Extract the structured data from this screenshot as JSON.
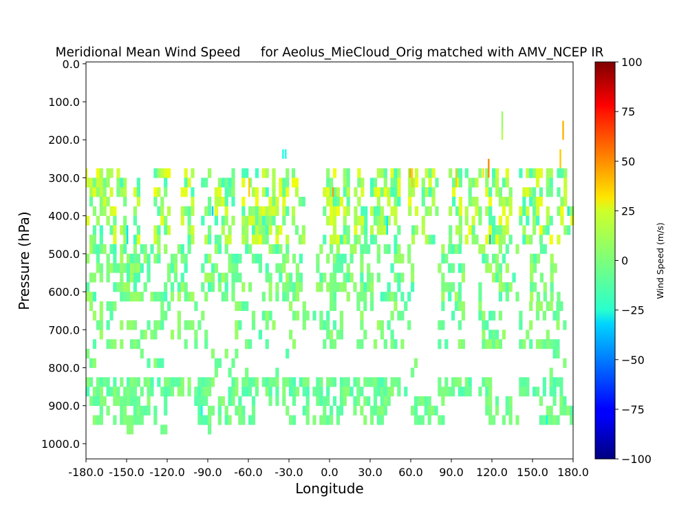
{
  "chart_data": {
    "type": "heatmap",
    "title": "Meridional Mean Wind Speed     for Aeolus_MieCloud_Orig matched with AMV_NCEP IR",
    "xlabel": "Longitude",
    "ylabel": "Pressure (hPa)",
    "xlim": [
      -180,
      180
    ],
    "ylim": [
      1040,
      -5
    ],
    "y_inverted": true,
    "x_ticks": [
      "-180.0",
      "-150.0",
      "-120.0",
      "-90.0",
      "-60.0",
      "-30.0",
      "0.0",
      "30.0",
      "60.0",
      "90.0",
      "120.0",
      "150.0",
      "180.0"
    ],
    "y_ticks": [
      "0.0",
      "100.0",
      "200.0",
      "300.0",
      "400.0",
      "500.0",
      "600.0",
      "700.0",
      "800.0",
      "900.0",
      "1000.0"
    ],
    "colorbar": {
      "label": "Wind Speed (m/s)",
      "min": -100,
      "max": 100,
      "ticks": [
        "100",
        "75",
        "50",
        "25",
        "0",
        "−25",
        "−50",
        "−75",
        "−100"
      ],
      "colormap": "jet"
    },
    "grid": false,
    "cell_width_deg": 2.5,
    "cell_height_hPa": 25,
    "bands": [
      {
        "p0": 275,
        "p1": 475,
        "lon_ranges": [
          [
            -180,
            -152
          ],
          [
            -145,
            -140
          ],
          [
            -130,
            -118
          ],
          [
            -110,
            -100
          ],
          [
            -95,
            -70
          ],
          [
            -65,
            -30
          ],
          [
            -28,
            -20
          ],
          [
            -5,
            3
          ],
          [
            5,
            15
          ],
          [
            18,
            28
          ],
          [
            30,
            55
          ],
          [
            58,
            65
          ],
          [
            68,
            80
          ],
          [
            88,
            98
          ],
          [
            100,
            112
          ],
          [
            115,
            135
          ],
          [
            140,
            165
          ],
          [
            168,
            180
          ]
        ],
        "coverage": 0.55,
        "mean": 5,
        "spread": 18
      },
      {
        "p0": 475,
        "p1": 625,
        "lon_ranges": [
          [
            -180,
            -100
          ],
          [
            -95,
            -20
          ],
          [
            -10,
            62
          ],
          [
            80,
            100
          ],
          [
            110,
            140
          ],
          [
            148,
            170
          ]
        ],
        "coverage": 0.45,
        "mean": -2,
        "spread": 10
      },
      {
        "p0": 625,
        "p1": 750,
        "lon_ranges": [
          [
            -180,
            -90
          ],
          [
            -70,
            -40
          ],
          [
            -30,
            10
          ],
          [
            20,
            60
          ],
          [
            70,
            100
          ],
          [
            110,
            130
          ],
          [
            140,
            175
          ]
        ],
        "coverage": 0.3,
        "mean": -2,
        "spread": 8
      },
      {
        "p0": 750,
        "p1": 825,
        "lon_ranges": [
          [
            -180,
            -170
          ],
          [
            -150,
            -120
          ],
          [
            -90,
            -60
          ],
          [
            -40,
            -30
          ],
          [
            60,
            70
          ],
          [
            160,
            175
          ]
        ],
        "coverage": 0.25,
        "mean": -3,
        "spread": 7
      },
      {
        "p0": 825,
        "p1": 875,
        "lon_ranges": [
          [
            -180,
            -85
          ],
          [
            -75,
            60
          ],
          [
            80,
            103
          ],
          [
            110,
            120
          ],
          [
            140,
            172
          ]
        ],
        "coverage": 0.72,
        "mean": -4,
        "spread": 7
      },
      {
        "p0": 875,
        "p1": 950,
        "lon_ranges": [
          [
            -180,
            -120
          ],
          [
            -100,
            -55
          ],
          [
            -45,
            45
          ],
          [
            60,
            85
          ],
          [
            115,
            140
          ],
          [
            155,
            180
          ]
        ],
        "coverage": 0.5,
        "mean": -3,
        "spread": 6
      },
      {
        "p0": 950,
        "p1": 975,
        "lon_ranges": [
          [
            -150,
            -145
          ],
          [
            -125,
            -122
          ],
          [
            -90,
            -88
          ]
        ],
        "coverage": 1.0,
        "mean": -2,
        "spread": 4
      }
    ],
    "extremes": [
      {
        "lon": 59,
        "p0": 275,
        "p1": 300,
        "value": 42
      },
      {
        "lon": 60.5,
        "p0": 275,
        "p1": 325,
        "value": 35
      },
      {
        "lon": 117,
        "p0": 250,
        "p1": 300,
        "value": 48
      },
      {
        "lon": 113,
        "p0": 275,
        "p1": 300,
        "value": 30
      },
      {
        "lon": 172,
        "p0": 150,
        "p1": 200,
        "value": 40
      },
      {
        "lon": 170,
        "p0": 225,
        "p1": 275,
        "value": 35
      },
      {
        "lon": -60,
        "p0": 300,
        "p1": 350,
        "value": 35
      },
      {
        "lon": 2,
        "p0": 325,
        "p1": 350,
        "value": 45
      },
      {
        "lon": 93,
        "p0": 275,
        "p1": 325,
        "value": 35
      },
      {
        "lon": -35,
        "p0": 225,
        "p1": 250,
        "value": -20
      },
      {
        "lon": -33,
        "p0": 225,
        "p1": 250,
        "value": -20
      },
      {
        "lon": 127,
        "p0": 175,
        "p1": 200,
        "value": 10
      },
      {
        "lon": 127,
        "p0": 125,
        "p1": 175,
        "value": 5
      },
      {
        "lon": -150,
        "p0": 425,
        "p1": 475,
        "value": -30
      },
      {
        "lon": -87,
        "p0": 375,
        "p1": 400,
        "value": -35
      },
      {
        "lon": 118,
        "p0": 450,
        "p1": 475,
        "value": -40
      },
      {
        "lon": -95,
        "p0": 900,
        "p1": 925,
        "value": -25
      },
      {
        "lon": 42,
        "p0": 400,
        "p1": 450,
        "value": -28
      },
      {
        "lon": 160,
        "p0": 925,
        "p1": 950,
        "value": -25
      },
      {
        "lon": 176,
        "p0": 375,
        "p1": 400,
        "value": -28
      },
      {
        "lon": -180,
        "p0": 275,
        "p1": 325,
        "value": 20
      }
    ]
  }
}
